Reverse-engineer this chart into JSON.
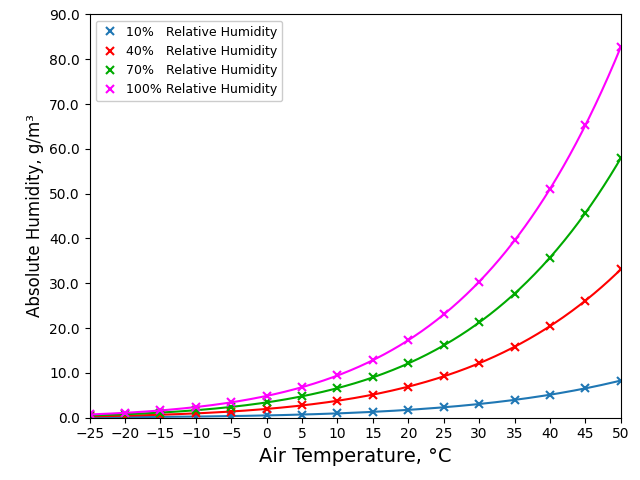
{
  "title": "",
  "xlabel": "Air Temperature, °C",
  "ylabel": "Absolute Humidity, g/m³",
  "xlim": [
    -25,
    50
  ],
  "ylim": [
    0,
    90
  ],
  "xticks": [
    -25,
    -20,
    -15,
    -10,
    -5,
    0,
    5,
    10,
    15,
    20,
    25,
    30,
    35,
    40,
    45,
    50
  ],
  "yticks": [
    0.0,
    10.0,
    20.0,
    30.0,
    40.0,
    50.0,
    60.0,
    70.0,
    80.0,
    90.0
  ],
  "series": [
    {
      "rh": 0.1,
      "label": "10%   Relative Humidity",
      "color": "#1f77b4"
    },
    {
      "rh": 0.4,
      "label": "40%   Relative Humidity",
      "color": "#ff0000"
    },
    {
      "rh": 0.7,
      "label": "70%   Relative Humidity",
      "color": "#00aa00"
    },
    {
      "rh": 1.0,
      "label": "100% Relative Humidity",
      "color": "#ff00ff"
    }
  ],
  "marker": "x",
  "linewidth": 1.5,
  "markersize": 6,
  "markeredgewidth": 1.5,
  "legend_loc": "upper left",
  "background_color": "#ffffff",
  "xlabel_fontsize": 14,
  "ylabel_fontsize": 12,
  "tick_labelsize": 10
}
